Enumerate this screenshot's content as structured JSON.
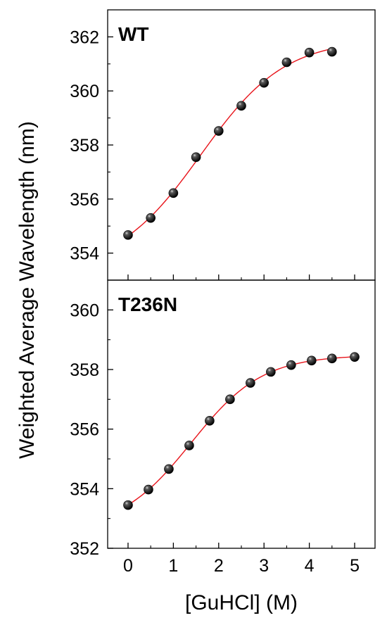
{
  "chart_data": {
    "type": "scatter",
    "ylabel": "Weighted Average Wavelength (nm)",
    "xlabel": "[GuHCl] (M)",
    "xlim": [
      -0.45,
      5.45
    ],
    "x_ticks": [
      "0",
      "1",
      "2",
      "3",
      "4",
      "5"
    ],
    "x_tick_values": [
      0,
      1,
      2,
      3,
      4,
      5
    ],
    "fit_line_color": "#e8141b",
    "marker_color": "#000000",
    "panels": [
      {
        "label": "WT",
        "ylim": [
          353,
          363
        ],
        "y_ticks": [
          "354",
          "356",
          "358",
          "360",
          "362"
        ],
        "y_tick_values": [
          354,
          356,
          358,
          360,
          362
        ],
        "x": [
          0,
          0.5,
          1.0,
          1.5,
          2.0,
          2.5,
          3.0,
          3.5,
          4.0,
          4.5
        ],
        "y": [
          354.67,
          355.3,
          356.22,
          357.55,
          358.52,
          359.45,
          360.3,
          361.06,
          361.42,
          361.45
        ]
      },
      {
        "label": "T236N",
        "ylim": [
          352,
          361
        ],
        "y_ticks": [
          "352",
          "354",
          "356",
          "358",
          "360"
        ],
        "y_tick_values": [
          352,
          354,
          356,
          358,
          360
        ],
        "x": [
          0,
          0.45,
          0.9,
          1.35,
          1.8,
          2.25,
          2.7,
          3.15,
          3.6,
          4.05,
          4.5,
          5.0
        ],
        "y": [
          353.45,
          353.97,
          354.66,
          355.45,
          356.28,
          357.0,
          357.55,
          357.92,
          358.15,
          358.3,
          358.37,
          358.42
        ]
      }
    ]
  }
}
